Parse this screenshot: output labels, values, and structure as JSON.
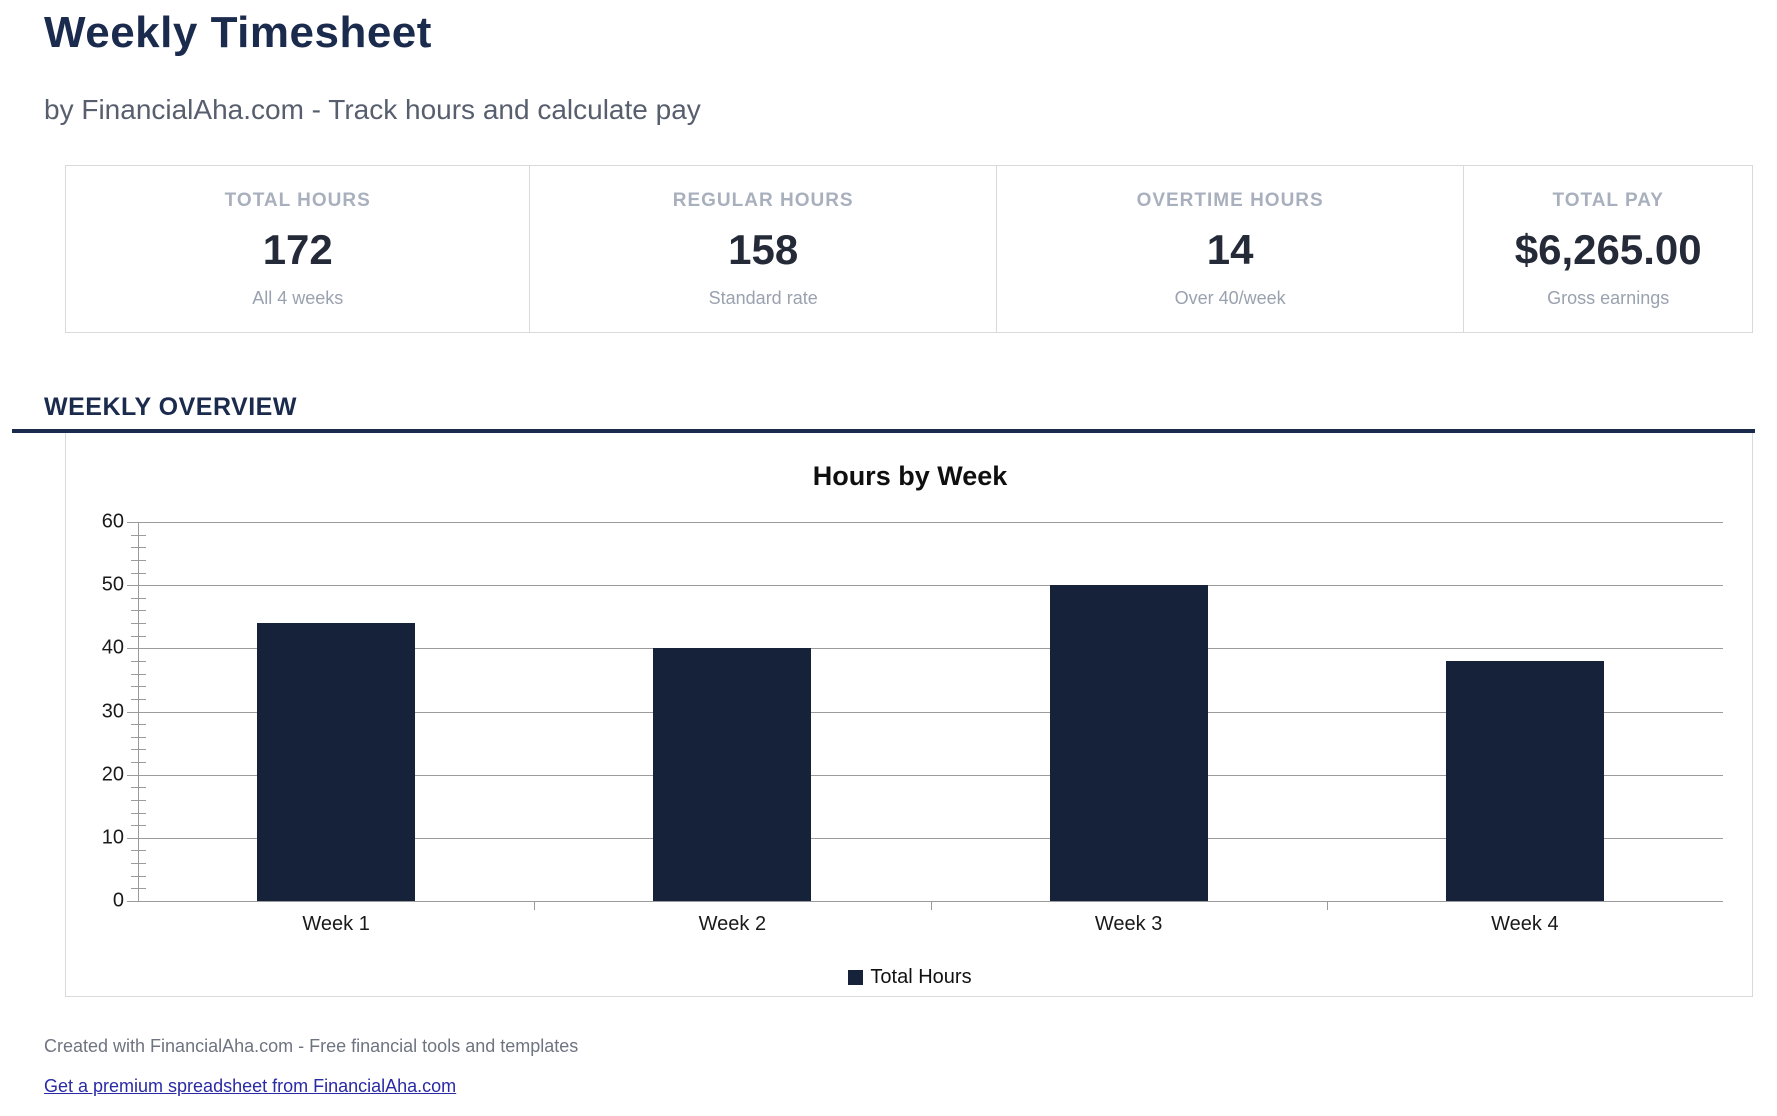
{
  "header": {
    "title": "Weekly Timesheet",
    "subtitle": "by FinancialAha.com - Track hours and calculate pay"
  },
  "stats": {
    "cards": [
      {
        "label": "TOTAL HOURS",
        "value": "172",
        "sub": "All 4 weeks"
      },
      {
        "label": "REGULAR HOURS",
        "value": "158",
        "sub": "Standard rate"
      },
      {
        "label": "OVERTIME HOURS",
        "value": "14",
        "sub": "Over 40/week"
      },
      {
        "label": "TOTAL PAY",
        "value": "$6,265.00",
        "sub": "Gross earnings"
      }
    ]
  },
  "section": {
    "title": "WEEKLY OVERVIEW"
  },
  "chart_data": {
    "type": "bar",
    "title": "Hours by Week",
    "categories": [
      "Week 1",
      "Week 2",
      "Week 3",
      "Week 4"
    ],
    "series": [
      {
        "name": "Total Hours",
        "values": [
          44,
          40,
          50,
          38
        ]
      }
    ],
    "xlabel": "",
    "ylabel": "",
    "ylim": [
      0,
      60
    ],
    "ytick_step": 10,
    "minor_tick_step": 2,
    "grid": true,
    "legend_position": "bottom",
    "bar_color": "#16213a"
  },
  "footer": {
    "credit": "Created with FinancialAha.com - Free financial tools and templates",
    "link": "Get a premium spreadsheet from FinancialAha.com"
  },
  "colors": {
    "accent_navy": "#1b2b4d",
    "bar_navy": "#16213a",
    "value_text": "#242a38",
    "muted_label": "#a9b0bd",
    "muted_sub": "#9aa1af",
    "card_border": "#d9d9d9",
    "gridline": "#9b9b9b",
    "footer_text": "#6e7480",
    "link_blue": "#2a2aa5"
  }
}
